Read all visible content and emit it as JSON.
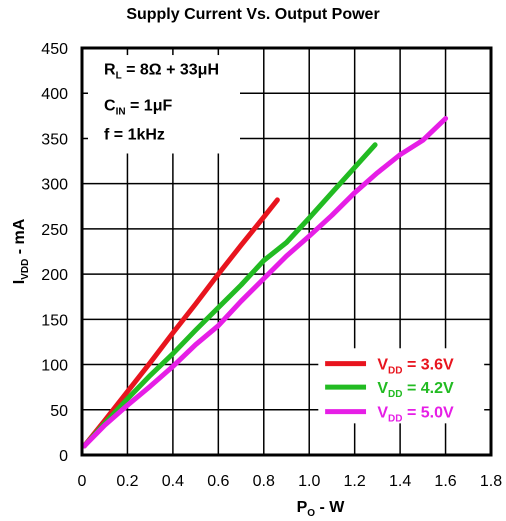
{
  "chart_data": {
    "type": "line",
    "title": "Supply Current Vs. Output Power",
    "xlabel": {
      "main": "P",
      "sub": "O",
      "rest": " - W"
    },
    "ylabel": {
      "main": "I",
      "sub": "VDD",
      "rest": " - mA"
    },
    "xlim": [
      0,
      1.8
    ],
    "ylim": [
      0,
      450
    ],
    "x_ticks": [
      0,
      0.2,
      0.4,
      0.6,
      0.8,
      1.0,
      1.2,
      1.4,
      1.6,
      1.8
    ],
    "x_tick_labels": [
      "0",
      "0.2",
      "0.4",
      "0.6",
      "0.8",
      "1.0",
      "1.2",
      "1.4",
      "1.6",
      "1.8"
    ],
    "y_ticks": [
      0,
      50,
      100,
      150,
      200,
      250,
      300,
      350,
      400,
      450
    ],
    "y_tick_labels": [
      "0",
      "50",
      "100",
      "150",
      "200",
      "250",
      "300",
      "350",
      "400",
      "450"
    ],
    "grid": true,
    "conditions": [
      {
        "main": "R",
        "sub": "L",
        "rest": " = 8Ω + 33μH"
      },
      {
        "main": "C",
        "sub": "IN",
        "rest": " = 1μF"
      },
      {
        "main": "f = 1kHz",
        "sub": "",
        "rest": ""
      }
    ],
    "legend_position": "bottom-right",
    "series": [
      {
        "name": "V_DD = 3.6V",
        "label_main": "V",
        "label_sub": "DD",
        "label_rest": " = 3.6V",
        "color": "#e8141e",
        "x": [
          0.01,
          0.1,
          0.2,
          0.3,
          0.4,
          0.5,
          0.6,
          0.7,
          0.8,
          0.86
        ],
        "y": [
          10,
          38,
          70,
          102,
          135,
          167,
          200,
          232,
          263,
          282
        ]
      },
      {
        "name": "V_DD = 4.2V",
        "label_main": "V",
        "label_sub": "DD",
        "label_rest": " = 4.2V",
        "color": "#22bb22",
        "x": [
          0.01,
          0.1,
          0.2,
          0.3,
          0.4,
          0.5,
          0.6,
          0.7,
          0.8,
          0.9,
          1.0,
          1.1,
          1.2,
          1.29
        ],
        "y": [
          10,
          35,
          62,
          88,
          112,
          138,
          163,
          188,
          215,
          235,
          262,
          290,
          318,
          343
        ]
      },
      {
        "name": "V_DD = 5.0V",
        "label_main": "V",
        "label_sub": "DD",
        "label_rest": " = 5.0V",
        "color": "#e61ee6",
        "x": [
          0.01,
          0.1,
          0.2,
          0.3,
          0.4,
          0.5,
          0.6,
          0.7,
          0.8,
          0.9,
          1.0,
          1.1,
          1.2,
          1.3,
          1.4,
          1.5,
          1.6
        ],
        "y": [
          10,
          33,
          55,
          76,
          98,
          122,
          143,
          170,
          195,
          220,
          242,
          265,
          290,
          312,
          332,
          348,
          372
        ]
      }
    ]
  }
}
